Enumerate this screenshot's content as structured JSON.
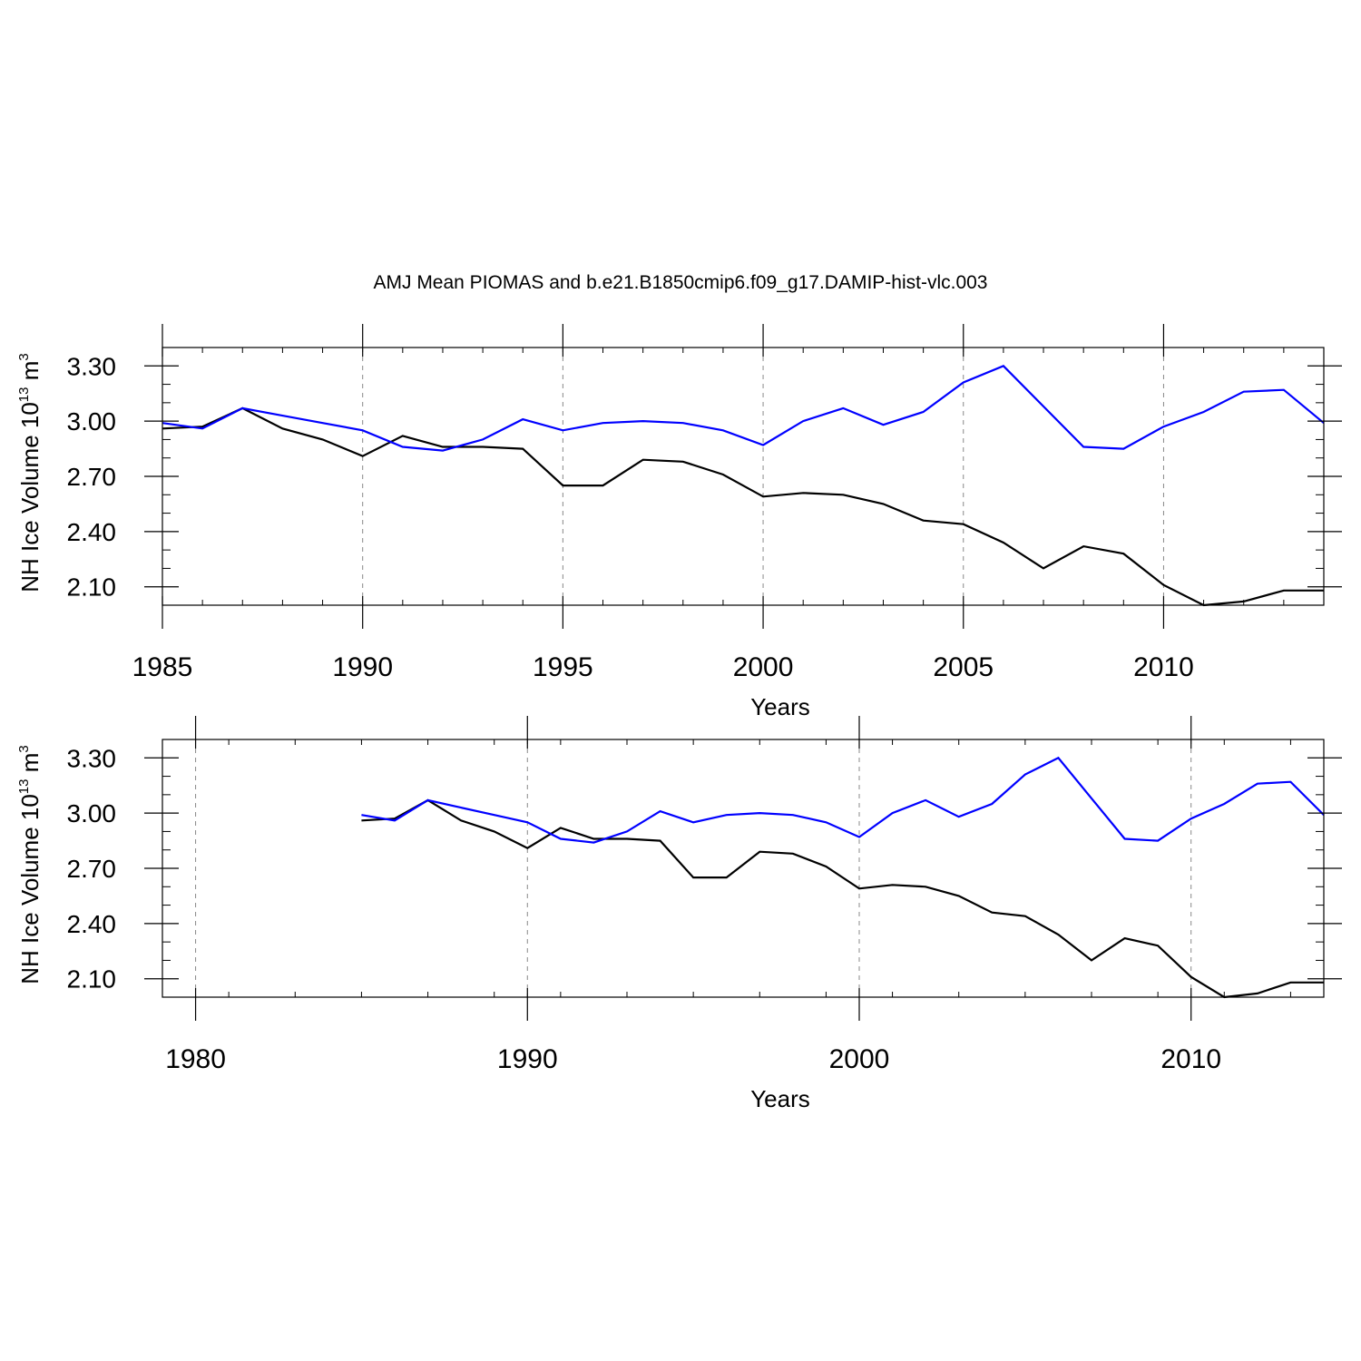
{
  "title": "AMJ Mean PIOMAS and b.e21.B1850cmip6.f09_g17.DAMIP-hist-vlc.003",
  "colors": {
    "obs": "#000000",
    "model": "#0000ff",
    "grid": "#888888"
  },
  "chart_data": [
    {
      "type": "line",
      "xlabel": "Years",
      "ylabel": {
        "text": "NH Ice Volume 10",
        "exp1": "13",
        "unit": " m",
        "exp2": "3"
      },
      "xlim": [
        1985,
        2014
      ],
      "ylim": [
        2.0,
        3.4
      ],
      "x_major_ticks": [
        1985,
        1990,
        1995,
        2000,
        2005,
        2010
      ],
      "x_minor_step": 1,
      "y_major_ticks": [
        2.1,
        2.4,
        2.7,
        3.0,
        3.3
      ],
      "y_tick_labels": [
        "2.10",
        "2.40",
        "2.70",
        "3.00",
        "3.30"
      ],
      "y_minor_step": 0.1,
      "grid": "vertical dashed at major x ticks",
      "x": [
        1985,
        1986,
        1987,
        1988,
        1989,
        1990,
        1991,
        1992,
        1993,
        1994,
        1995,
        1996,
        1997,
        1998,
        1999,
        2000,
        2001,
        2002,
        2003,
        2004,
        2005,
        2006,
        2007,
        2008,
        2009,
        2010,
        2011,
        2012,
        2013,
        2014
      ],
      "series": [
        {
          "name": "PIOMAS",
          "color": "#000000",
          "values": [
            2.96,
            2.97,
            3.07,
            2.96,
            2.9,
            2.81,
            2.92,
            2.86,
            2.86,
            2.85,
            2.65,
            2.65,
            2.79,
            2.78,
            2.71,
            2.59,
            2.61,
            2.6,
            2.55,
            2.46,
            2.44,
            2.34,
            2.2,
            2.32,
            2.28,
            2.11,
            2.0,
            2.02,
            2.08,
            2.08
          ]
        },
        {
          "name": "b.e21.B1850cmip6.f09_g17.DAMIP-hist-vlc.003",
          "color": "#0000ff",
          "values": [
            2.99,
            2.96,
            3.07,
            3.03,
            2.99,
            2.95,
            2.86,
            2.84,
            2.9,
            3.01,
            2.95,
            2.99,
            3.0,
            2.99,
            2.95,
            2.87,
            3.0,
            3.07,
            2.98,
            3.05,
            3.21,
            3.3,
            3.08,
            2.86,
            2.85,
            2.97,
            3.05,
            3.16,
            3.17,
            2.99
          ]
        }
      ]
    },
    {
      "type": "line",
      "xlabel": "Years",
      "ylabel": {
        "text": "NH Ice Volume 10",
        "exp1": "13",
        "unit": " m",
        "exp2": "3"
      },
      "xlim": [
        1979,
        2014
      ],
      "ylim": [
        2.0,
        3.4
      ],
      "x_major_ticks": [
        1980,
        1990,
        2000,
        2010
      ],
      "x_minor_step": 2,
      "y_major_ticks": [
        2.1,
        2.4,
        2.7,
        3.0,
        3.3
      ],
      "y_tick_labels": [
        "2.10",
        "2.40",
        "2.70",
        "3.00",
        "3.30"
      ],
      "y_minor_step": 0.1,
      "grid": "vertical dashed at major x ticks",
      "x": [
        1985,
        1986,
        1987,
        1988,
        1989,
        1990,
        1991,
        1992,
        1993,
        1994,
        1995,
        1996,
        1997,
        1998,
        1999,
        2000,
        2001,
        2002,
        2003,
        2004,
        2005,
        2006,
        2007,
        2008,
        2009,
        2010,
        2011,
        2012,
        2013,
        2014
      ],
      "series": [
        {
          "name": "PIOMAS",
          "color": "#000000",
          "values": [
            2.96,
            2.97,
            3.07,
            2.96,
            2.9,
            2.81,
            2.92,
            2.86,
            2.86,
            2.85,
            2.65,
            2.65,
            2.79,
            2.78,
            2.71,
            2.59,
            2.61,
            2.6,
            2.55,
            2.46,
            2.44,
            2.34,
            2.2,
            2.32,
            2.28,
            2.11,
            2.0,
            2.02,
            2.08,
            2.08
          ]
        },
        {
          "name": "b.e21.B1850cmip6.f09_g17.DAMIP-hist-vlc.003",
          "color": "#0000ff",
          "values": [
            2.99,
            2.96,
            3.07,
            3.03,
            2.99,
            2.95,
            2.86,
            2.84,
            2.9,
            3.01,
            2.95,
            2.99,
            3.0,
            2.99,
            2.95,
            2.87,
            3.0,
            3.07,
            2.98,
            3.05,
            3.21,
            3.3,
            3.08,
            2.86,
            2.85,
            2.97,
            3.05,
            3.16,
            3.17,
            2.99
          ]
        }
      ]
    }
  ]
}
